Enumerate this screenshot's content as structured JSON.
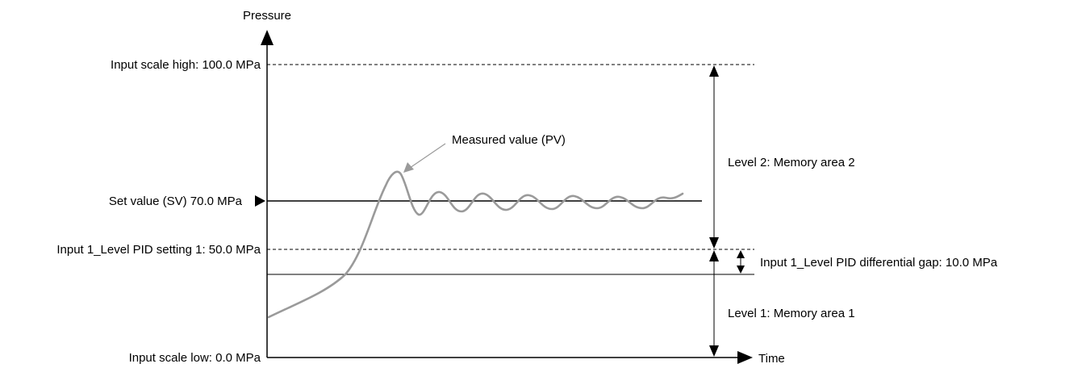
{
  "axes": {
    "y_label": "Pressure",
    "x_label": "Time"
  },
  "levels": {
    "scale_high": "Input scale high: 100.0 MPa",
    "set_value": "Set value (SV) 70.0 MPa",
    "pid_setting": "Input 1_Level PID setting 1: 50.0 MPa",
    "scale_low": "Input scale low: 0.0 MPa"
  },
  "annotations": {
    "measured_value": "Measured value (PV)",
    "level2": "Level 2: Memory area 2",
    "level1": "Level 1: Memory area 1",
    "differential_gap": "Input 1_Level PID differential gap: 10.0 MPa"
  },
  "colors": {
    "line": "#000000",
    "pv_curve": "#9a9a9a"
  }
}
